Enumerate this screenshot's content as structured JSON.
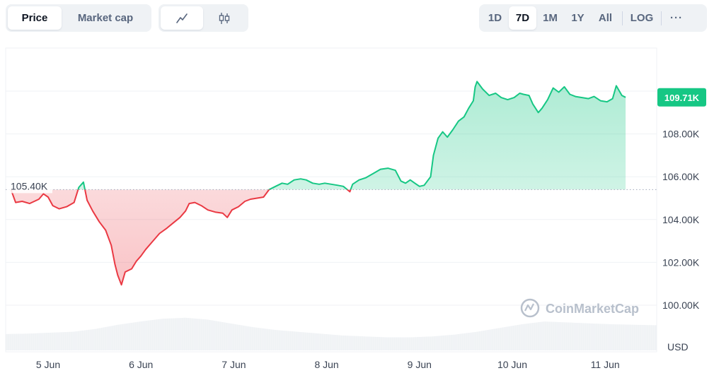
{
  "toolbar": {
    "modes": [
      "Price",
      "Market cap"
    ],
    "active_mode": "Price",
    "chart_types": [
      "line-chart-icon",
      "candlestick-icon"
    ],
    "ranges": [
      "1D",
      "7D",
      "1M",
      "1Y",
      "All"
    ],
    "active_range": "7D",
    "log_label": "LOG",
    "more_label": "···"
  },
  "watermark": "CoinMarketCap",
  "colors": {
    "up": "#16c784",
    "down": "#ea3943",
    "badge": "#16c784"
  },
  "chart_data": {
    "type": "area",
    "x_ticks": [
      "5 Jun",
      "6 Jun",
      "7 Jun",
      "8 Jun",
      "9 Jun",
      "10 Jun",
      "11 Jun"
    ],
    "y_ticks": [
      "100.00K",
      "102.00K",
      "104.00K",
      "106.00K",
      "108.00K"
    ],
    "ylim": [
      99000,
      112000
    ],
    "currency_label": "USD",
    "baseline": {
      "value": 105400,
      "label": "105.40K"
    },
    "current": {
      "value": 109710,
      "label": "109.71K"
    },
    "series": [
      {
        "values": [
          [
            -0.4,
            105400
          ],
          [
            -0.35,
            104800
          ],
          [
            -0.28,
            104850
          ],
          [
            -0.2,
            104750
          ],
          [
            -0.1,
            104950
          ],
          [
            -0.05,
            105200
          ],
          [
            0.0,
            105050
          ],
          [
            0.05,
            104650
          ],
          [
            0.12,
            104500
          ],
          [
            0.2,
            104600
          ],
          [
            0.28,
            104800
          ],
          [
            0.33,
            105500
          ],
          [
            0.38,
            105750
          ],
          [
            0.42,
            104900
          ],
          [
            0.48,
            104400
          ],
          [
            0.55,
            103900
          ],
          [
            0.62,
            103500
          ],
          [
            0.68,
            102800
          ],
          [
            0.72,
            101900
          ],
          [
            0.75,
            101400
          ],
          [
            0.79,
            100950
          ],
          [
            0.83,
            101550
          ],
          [
            0.9,
            101700
          ],
          [
            0.95,
            102050
          ],
          [
            1.0,
            102300
          ],
          [
            1.05,
            102600
          ],
          [
            1.12,
            102950
          ],
          [
            1.2,
            103350
          ],
          [
            1.28,
            103600
          ],
          [
            1.35,
            103850
          ],
          [
            1.42,
            104100
          ],
          [
            1.48,
            104400
          ],
          [
            1.52,
            104750
          ],
          [
            1.58,
            104800
          ],
          [
            1.65,
            104650
          ],
          [
            1.72,
            104450
          ],
          [
            1.8,
            104350
          ],
          [
            1.88,
            104300
          ],
          [
            1.93,
            104100
          ],
          [
            1.98,
            104450
          ],
          [
            2.05,
            104600
          ],
          [
            2.12,
            104850
          ],
          [
            2.18,
            104950
          ],
          [
            2.25,
            105000
          ],
          [
            2.32,
            105050
          ],
          [
            2.38,
            105400
          ],
          [
            2.45,
            105550
          ],
          [
            2.52,
            105700
          ],
          [
            2.58,
            105650
          ],
          [
            2.65,
            105850
          ],
          [
            2.72,
            105900
          ],
          [
            2.78,
            105850
          ],
          [
            2.85,
            105700
          ],
          [
            2.92,
            105650
          ],
          [
            2.98,
            105700
          ],
          [
            3.05,
            105650
          ],
          [
            3.12,
            105600
          ],
          [
            3.18,
            105550
          ],
          [
            3.25,
            105300
          ],
          [
            3.28,
            105650
          ],
          [
            3.35,
            105850
          ],
          [
            3.42,
            105950
          ],
          [
            3.5,
            106150
          ],
          [
            3.58,
            106350
          ],
          [
            3.66,
            106400
          ],
          [
            3.74,
            106300
          ],
          [
            3.8,
            105800
          ],
          [
            3.85,
            105700
          ],
          [
            3.9,
            105850
          ],
          [
            3.95,
            105700
          ],
          [
            4.0,
            105550
          ],
          [
            4.05,
            105600
          ],
          [
            4.12,
            106000
          ],
          [
            4.15,
            107000
          ],
          [
            4.2,
            107800
          ],
          [
            4.25,
            108100
          ],
          [
            4.3,
            107850
          ],
          [
            4.36,
            108200
          ],
          [
            4.42,
            108600
          ],
          [
            4.48,
            108800
          ],
          [
            4.53,
            109200
          ],
          [
            4.58,
            109550
          ],
          [
            4.6,
            110200
          ],
          [
            4.62,
            110450
          ],
          [
            4.68,
            110100
          ],
          [
            4.75,
            109800
          ],
          [
            4.82,
            109900
          ],
          [
            4.88,
            109700
          ],
          [
            4.95,
            109600
          ],
          [
            5.02,
            109700
          ],
          [
            5.08,
            109900
          ],
          [
            5.12,
            109850
          ],
          [
            5.18,
            109800
          ],
          [
            5.22,
            109400
          ],
          [
            5.28,
            109000
          ],
          [
            5.32,
            109200
          ],
          [
            5.38,
            109600
          ],
          [
            5.44,
            110150
          ],
          [
            5.5,
            109950
          ],
          [
            5.56,
            110200
          ],
          [
            5.62,
            109850
          ],
          [
            5.68,
            109750
          ],
          [
            5.75,
            109700
          ],
          [
            5.82,
            109650
          ],
          [
            5.88,
            109750
          ],
          [
            5.95,
            109550
          ],
          [
            6.02,
            109500
          ],
          [
            6.08,
            109650
          ],
          [
            6.12,
            110250
          ],
          [
            6.18,
            109800
          ],
          [
            6.22,
            109710
          ]
        ]
      }
    ],
    "volume": [
      0.35,
      0.36,
      0.38,
      0.4,
      0.46,
      0.55,
      0.62,
      0.68,
      0.7,
      0.66,
      0.58,
      0.5,
      0.44,
      0.4,
      0.36,
      0.32,
      0.3,
      0.28,
      0.28,
      0.3,
      0.34,
      0.4,
      0.48,
      0.56,
      0.62,
      0.6,
      0.58,
      0.56,
      0.55,
      0.54
    ]
  }
}
